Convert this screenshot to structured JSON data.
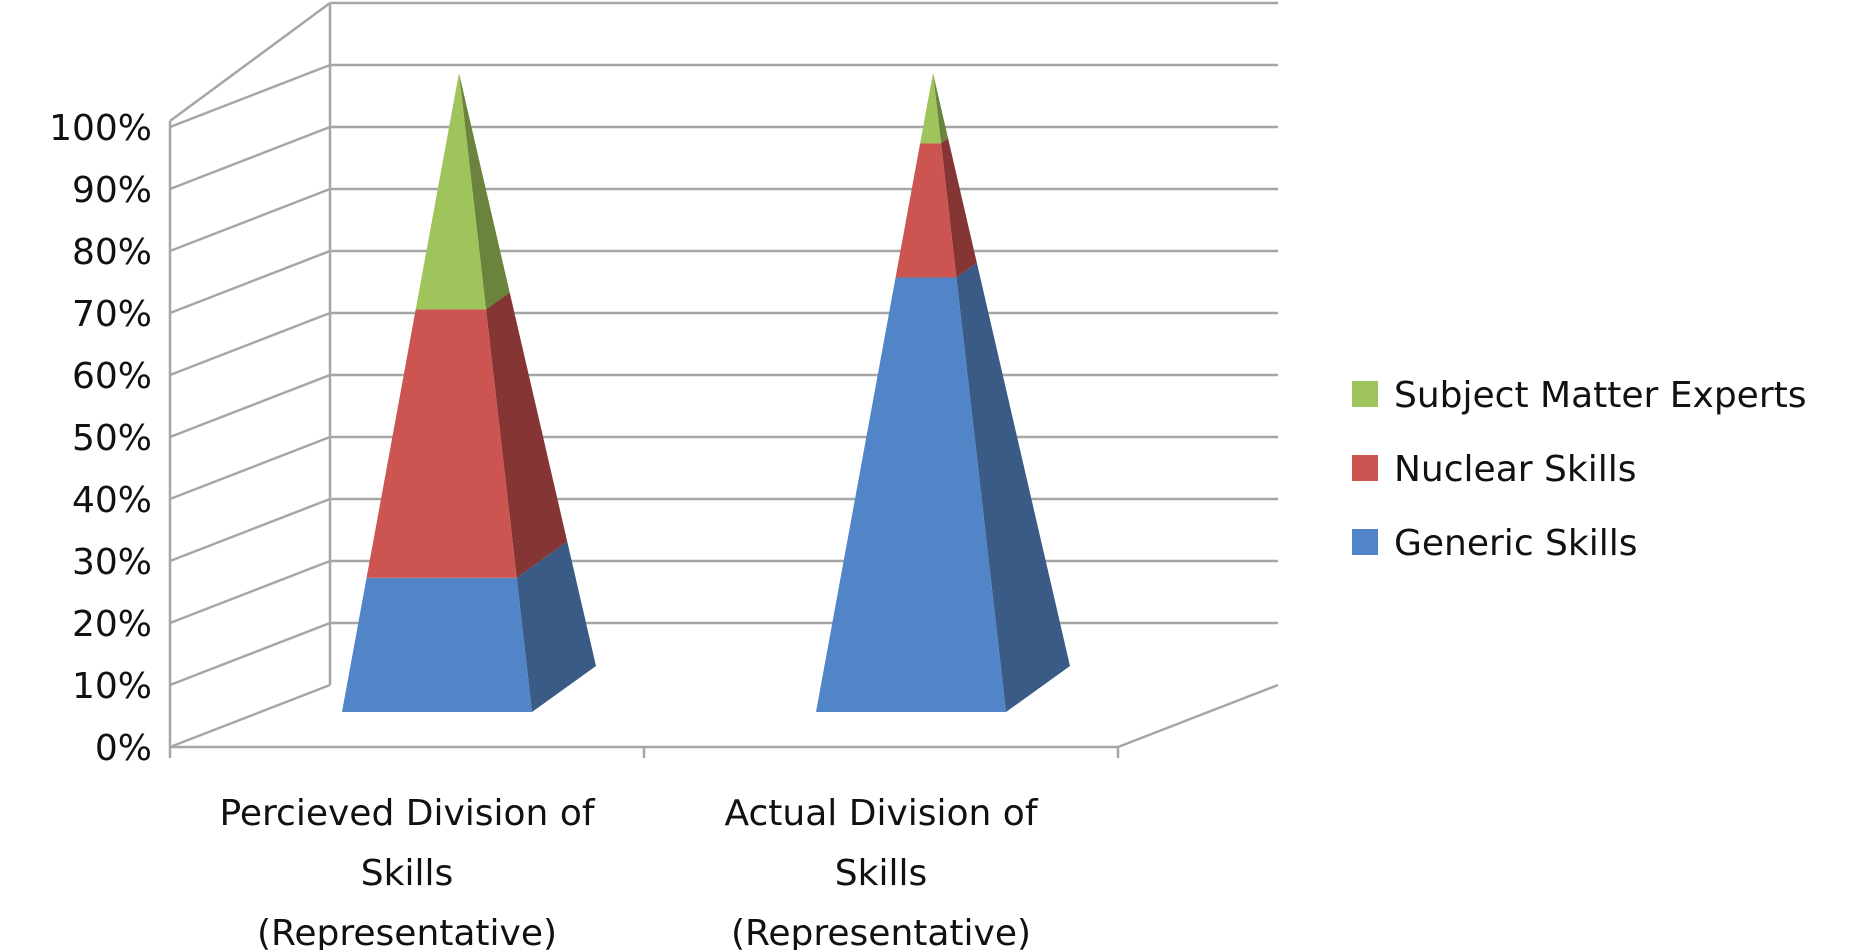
{
  "chart_data": {
    "type": "stacked-3d-pyramid",
    "categories": [
      [
        "Percieved Division of",
        "Skills",
        "(Representative)"
      ],
      [
        "Actual Division of",
        "Skills",
        "(Representative)"
      ]
    ],
    "series": [
      {
        "name": "Generic Skills",
        "values": [
          21,
          68
        ],
        "color": "#5185c7",
        "side_color": "#395b85"
      },
      {
        "name": "Nuclear Skills",
        "values": [
          42,
          21
        ],
        "color": "#cd5551",
        "side_color": "#853634"
      },
      {
        "name": "Subject Matter Experts",
        "values": [
          37,
          11
        ],
        "color": "#a0c45c",
        "side_color": "#6a843d"
      }
    ],
    "y_ticks": [
      "0%",
      "10%",
      "20%",
      "30%",
      "40%",
      "50%",
      "60%",
      "70%",
      "80%",
      "90%",
      "100%"
    ],
    "ylim": [
      0,
      100
    ],
    "grid": true,
    "legend": {
      "placement": "right",
      "order": [
        "Subject Matter Experts",
        "Nuclear Skills",
        "Generic Skills"
      ]
    }
  }
}
